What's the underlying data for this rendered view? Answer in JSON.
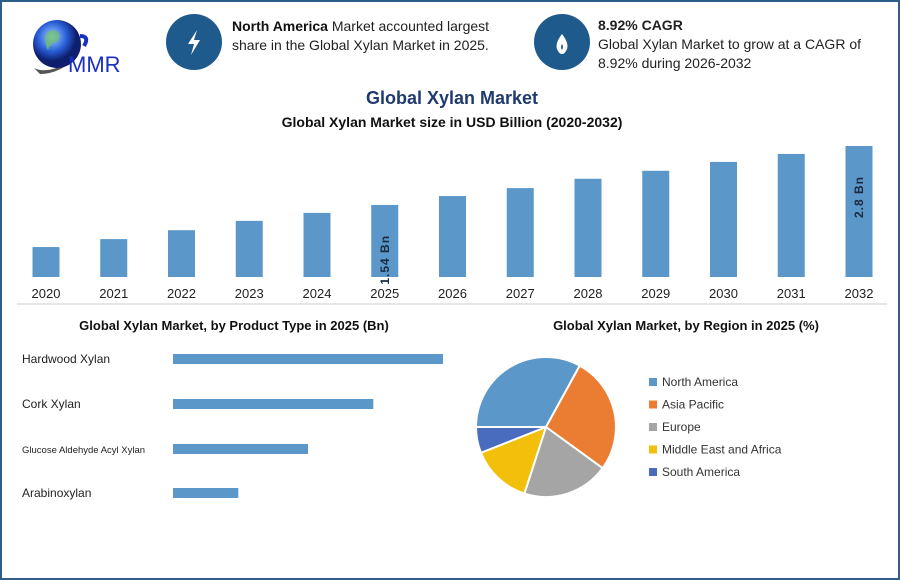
{
  "logo": {
    "text": "MMR"
  },
  "highlights": [
    {
      "icon": "lightning-icon",
      "bold": "North America",
      "text": " Market accounted largest share in the Global Xylan Market in 2025."
    },
    {
      "icon": "flame-drop-icon",
      "bold": "8.92% CAGR",
      "text": "Global Xylan Market to grow at a CAGR of 8.92% during 2026-2032"
    }
  ],
  "header": {
    "title": "Global Xylan Market"
  },
  "colors": {
    "bar": "#5b97c9",
    "icon_bg": "#1f5a8c",
    "title": "#1f3a6e",
    "frame": "#2f5d8a"
  },
  "chart_data": [
    {
      "type": "bar",
      "title": "Global Xylan Market size in USD Billion (2020-2032)",
      "categories": [
        "2020",
        "2021",
        "2022",
        "2023",
        "2024",
        "2025",
        "2026",
        "2027",
        "2028",
        "2029",
        "2030",
        "2031",
        "2032"
      ],
      "values": [
        0.64,
        0.81,
        1.0,
        1.2,
        1.37,
        1.54,
        1.73,
        1.9,
        2.1,
        2.27,
        2.46,
        2.63,
        2.8
      ],
      "data_labels": {
        "2025": "1.54 Bn",
        "2032": "2.8 Bn"
      },
      "grid": false
    },
    {
      "type": "bar",
      "orientation": "horizontal",
      "title": "Global Xylan Market, by Product Type in 2025 (Bn)",
      "categories": [
        "Hardwood Xylan",
        "Cork Xylan",
        "Glucose Aldehyde Acyl Xylan",
        "Arabinoxylan"
      ],
      "values": [
        0.62,
        0.46,
        0.31,
        0.15
      ],
      "grid": false
    },
    {
      "type": "pie",
      "title": "Global Xylan Market, by Region in 2025 (%)",
      "categories": [
        "North America",
        "Asia Pacific",
        "Europe",
        "Middle East and Africa",
        "South America"
      ],
      "values": [
        33,
        27,
        20,
        14,
        6
      ],
      "colors": [
        "#5b97c9",
        "#ea7d32",
        "#a5a5a5",
        "#f2bf0a",
        "#4a6cbf"
      ],
      "legend": "right"
    }
  ]
}
